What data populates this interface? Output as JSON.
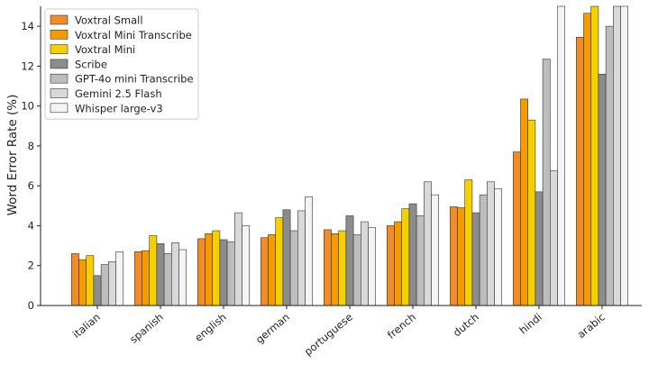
{
  "chart_data": {
    "type": "bar",
    "title": "",
    "xlabel": "",
    "ylabel": "Word Error Rate (%)",
    "ylim": [
      0,
      15
    ],
    "yticks": [
      0,
      2,
      4,
      6,
      8,
      10,
      12,
      14
    ],
    "grid": false,
    "legend_position": "top-left",
    "categories": [
      "italian",
      "spanish",
      "english",
      "german",
      "portuguese",
      "french",
      "dutch",
      "hindi",
      "arabic"
    ],
    "series": [
      {
        "name": "Voxtral Small",
        "color": "#f28c28",
        "values": [
          2.6,
          2.7,
          3.35,
          3.4,
          3.8,
          4.0,
          4.95,
          7.7,
          13.45
        ]
      },
      {
        "name": "Voxtral Mini Transcribe",
        "color": "#f59b00",
        "values": [
          2.3,
          2.75,
          3.6,
          3.55,
          3.6,
          4.2,
          4.9,
          10.35,
          14.65
        ]
      },
      {
        "name": "Voxtral Mini",
        "color": "#f5d000",
        "values": [
          2.5,
          3.5,
          3.75,
          4.4,
          3.75,
          4.85,
          6.3,
          9.3,
          15.0
        ]
      },
      {
        "name": "Scribe",
        "color": "#8c8c8c",
        "values": [
          1.5,
          3.1,
          3.3,
          4.8,
          4.5,
          5.1,
          4.65,
          5.7,
          11.6
        ]
      },
      {
        "name": "GPT-4o mini Transcribe",
        "color": "#bdbdbd",
        "values": [
          2.05,
          2.6,
          3.2,
          3.75,
          3.55,
          4.5,
          5.55,
          12.35,
          14.0
        ]
      },
      {
        "name": "Gemini 2.5 Flash",
        "color": "#d9d9d9",
        "values": [
          2.2,
          3.15,
          4.65,
          4.75,
          4.2,
          6.2,
          6.2,
          6.75,
          15.0
        ]
      },
      {
        "name": "Whisper large-v3",
        "color": "#f4f4f4",
        "values": [
          2.7,
          2.8,
          4.0,
          5.45,
          3.9,
          5.55,
          5.85,
          15.0,
          15.0
        ]
      }
    ]
  }
}
